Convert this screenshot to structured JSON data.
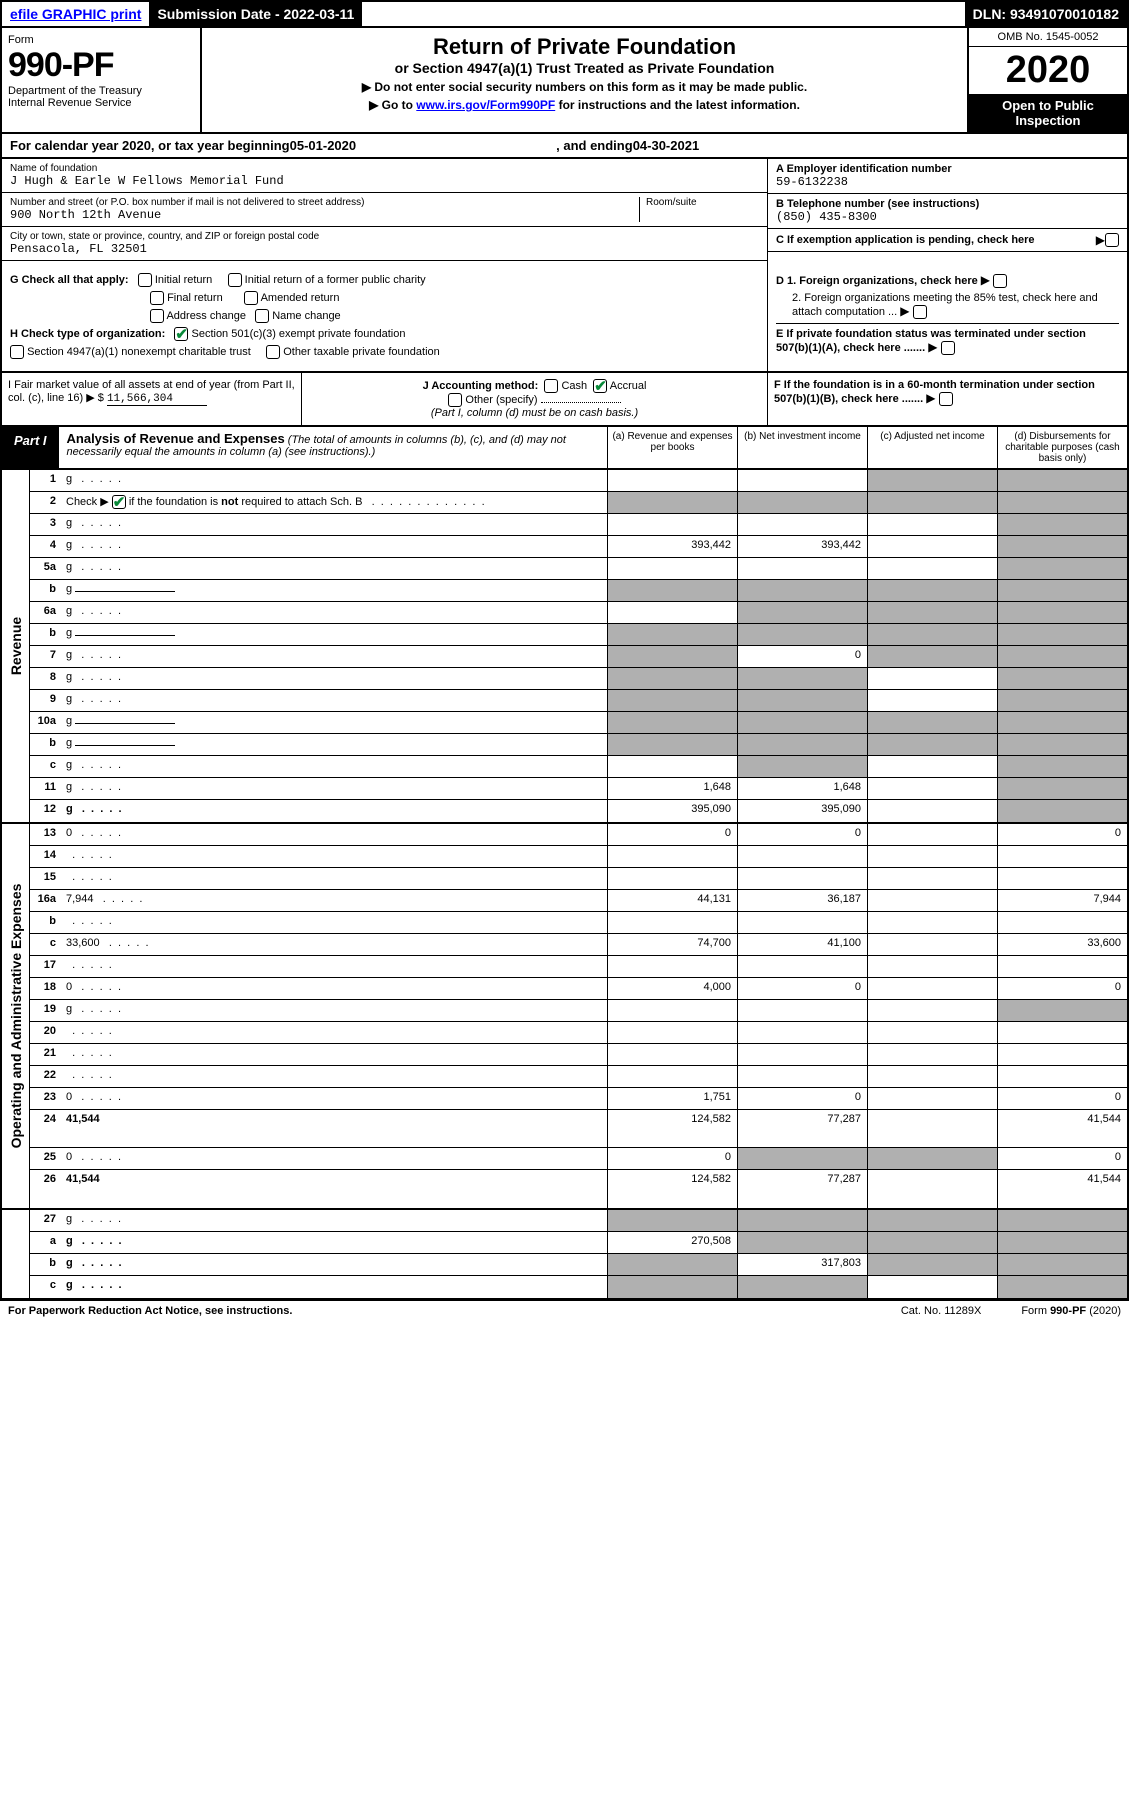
{
  "top": {
    "efile": "efile GRAPHIC print",
    "submission": "Submission Date - 2022-03-11",
    "dln": "DLN: 93491070010182"
  },
  "header": {
    "form_word": "Form",
    "form_number": "990-PF",
    "dept1": "Department of the Treasury",
    "dept2": "Internal Revenue Service",
    "title": "Return of Private Foundation",
    "subtitle": "or Section 4947(a)(1) Trust Treated as Private Foundation",
    "note1": "▶ Do not enter social security numbers on this form as it may be made public.",
    "note2_pre": "▶ Go to ",
    "note2_link": "www.irs.gov/Form990PF",
    "note2_post": " for instructions and the latest information.",
    "omb": "OMB No. 1545-0052",
    "year": "2020",
    "open": "Open to Public Inspection"
  },
  "calyear": {
    "pre": "For calendar year 2020, or tax year beginning ",
    "begin": "05-01-2020",
    "mid": ", and ending ",
    "end": "04-30-2021"
  },
  "id": {
    "name_label": "Name of foundation",
    "name": "J Hugh & Earle W Fellows Memorial Fund",
    "addr_label": "Number and street (or P.O. box number if mail is not delivered to street address)",
    "addr": "900 North 12th Avenue",
    "room_label": "Room/suite",
    "city_label": "City or town, state or province, country, and ZIP or foreign postal code",
    "city": "Pensacola, FL  32501",
    "a_label": "A Employer identification number",
    "a_val": "59-6132238",
    "b_label": "B Telephone number (see instructions)",
    "b_val": "(850) 435-8300",
    "c_label": "C If exemption application is pending, check here"
  },
  "checks": {
    "g_label": "G Check all that apply:",
    "g1": "Initial return",
    "g2": "Initial return of a former public charity",
    "g3": "Final return",
    "g4": "Amended return",
    "g5": "Address change",
    "g6": "Name change",
    "h_label": "H Check type of organization:",
    "h1": "Section 501(c)(3) exempt private foundation",
    "h2": "Section 4947(a)(1) nonexempt charitable trust",
    "h3": "Other taxable private foundation",
    "d1": "D 1. Foreign organizations, check here",
    "d2": "2. Foreign organizations meeting the 85% test, check here and attach computation ...",
    "e": "E  If private foundation status was terminated under section 507(b)(1)(A), check here .......",
    "f": "F  If the foundation is in a 60-month termination under section 507(b)(1)(B), check here ......."
  },
  "ij": {
    "i_label": "I Fair market value of all assets at end of year (from Part II, col. (c), line 16) ▶ $",
    "i_val": "11,566,304",
    "j_label": "J Accounting method:",
    "j_cash": "Cash",
    "j_accrual": "Accrual",
    "j_other": "Other (specify)",
    "j_note": "(Part I, column (d) must be on cash basis.)"
  },
  "part1": {
    "label": "Part I",
    "title": "Analysis of Revenue and Expenses",
    "title_note": "(The total of amounts in columns (b), (c), and (d) may not necessarily equal the amounts in column (a) (see instructions).)",
    "col_a": "(a)   Revenue and expenses per books",
    "col_b": "(b)   Net investment income",
    "col_c": "(c)   Adjusted net income",
    "col_d": "(d)  Disbursements for charitable purposes (cash basis only)"
  },
  "sections": {
    "revenue": "Revenue",
    "expenses": "Operating and Administrative Expenses"
  },
  "rows": [
    {
      "n": "1",
      "d": "g",
      "a": "",
      "b": "",
      "c": "g"
    },
    {
      "n": "2",
      "d": "g",
      "a": "g",
      "b": "g",
      "c": "g",
      "nocheck": true
    },
    {
      "n": "3",
      "d": "g",
      "a": "",
      "b": "",
      "c": ""
    },
    {
      "n": "4",
      "d": "g",
      "a": "393,442",
      "b": "393,442",
      "c": ""
    },
    {
      "n": "5a",
      "d": "g",
      "a": "",
      "b": "",
      "c": ""
    },
    {
      "n": "b",
      "d": "g",
      "a": "g",
      "b": "g",
      "c": "g",
      "inline": true
    },
    {
      "n": "6a",
      "d": "g",
      "a": "",
      "b": "g",
      "c": "g"
    },
    {
      "n": "b",
      "d": "g",
      "a": "g",
      "b": "g",
      "c": "g",
      "inline": true
    },
    {
      "n": "7",
      "d": "g",
      "a": "g",
      "b": "0",
      "c": "g"
    },
    {
      "n": "8",
      "d": "g",
      "a": "g",
      "b": "g",
      "c": ""
    },
    {
      "n": "9",
      "d": "g",
      "a": "g",
      "b": "g",
      "c": ""
    },
    {
      "n": "10a",
      "d": "g",
      "a": "g",
      "b": "g",
      "c": "g",
      "inline": true
    },
    {
      "n": "b",
      "d": "g",
      "a": "g",
      "b": "g",
      "c": "g",
      "inline": true
    },
    {
      "n": "c",
      "d": "g",
      "a": "",
      "b": "g",
      "c": ""
    },
    {
      "n": "11",
      "d": "g",
      "a": "1,648",
      "b": "1,648",
      "c": ""
    },
    {
      "n": "12",
      "d": "g",
      "a": "395,090",
      "b": "395,090",
      "c": "",
      "bold": true
    }
  ],
  "exp_rows": [
    {
      "n": "13",
      "d": "0",
      "a": "0",
      "b": "0",
      "c": ""
    },
    {
      "n": "14",
      "d": "",
      "a": "",
      "b": "",
      "c": ""
    },
    {
      "n": "15",
      "d": "",
      "a": "",
      "b": "",
      "c": ""
    },
    {
      "n": "16a",
      "d": "7,944",
      "a": "44,131",
      "b": "36,187",
      "c": ""
    },
    {
      "n": "b",
      "d": "",
      "a": "",
      "b": "",
      "c": ""
    },
    {
      "n": "c",
      "d": "33,600",
      "a": "74,700",
      "b": "41,100",
      "c": ""
    },
    {
      "n": "17",
      "d": "",
      "a": "",
      "b": "",
      "c": ""
    },
    {
      "n": "18",
      "d": "0",
      "a": "4,000",
      "b": "0",
      "c": ""
    },
    {
      "n": "19",
      "d": "g",
      "a": "",
      "b": "",
      "c": ""
    },
    {
      "n": "20",
      "d": "",
      "a": "",
      "b": "",
      "c": ""
    },
    {
      "n": "21",
      "d": "",
      "a": "",
      "b": "",
      "c": ""
    },
    {
      "n": "22",
      "d": "",
      "a": "",
      "b": "",
      "c": ""
    },
    {
      "n": "23",
      "d": "0",
      "a": "1,751",
      "b": "0",
      "c": ""
    },
    {
      "n": "24",
      "d": "41,544",
      "a": "124,582",
      "b": "77,287",
      "c": "",
      "bold": true,
      "tall": true
    },
    {
      "n": "25",
      "d": "0",
      "a": "0",
      "b": "g",
      "c": "g"
    },
    {
      "n": "26",
      "d": "41,544",
      "a": "124,582",
      "b": "77,287",
      "c": "",
      "bold": true,
      "tall": true
    }
  ],
  "final_rows": [
    {
      "n": "27",
      "d": "g",
      "a": "g",
      "b": "g",
      "c": "g"
    },
    {
      "n": "a",
      "d": "g",
      "a": "270,508",
      "b": "g",
      "c": "g",
      "bold": true
    },
    {
      "n": "b",
      "d": "g",
      "a": "g",
      "b": "317,803",
      "c": "g",
      "bold": true
    },
    {
      "n": "c",
      "d": "g",
      "a": "g",
      "b": "g",
      "c": "",
      "bold": true
    }
  ],
  "footer": {
    "left": "For Paperwork Reduction Act Notice, see instructions.",
    "center": "Cat. No. 11289X",
    "right": "Form 990-PF (2020)"
  }
}
